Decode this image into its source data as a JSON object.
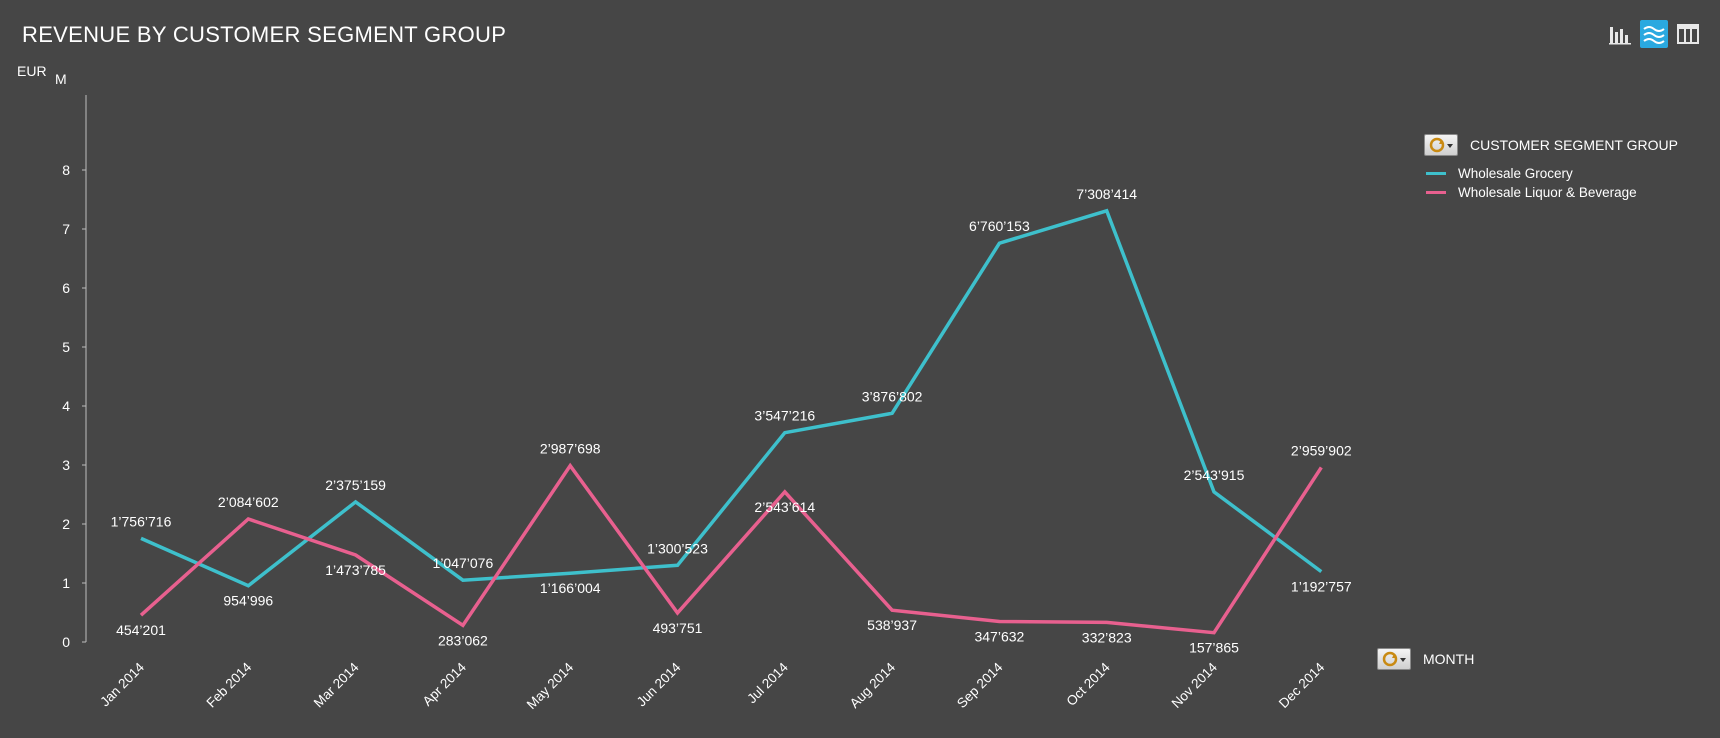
{
  "title": "REVENUE BY CUSTOMER SEGMENT GROUP",
  "colors": {
    "background": "#464646",
    "axis": "#bdbdbd",
    "text": "#ffffff",
    "grocery": "#3ec0cc",
    "liquor": "#e8608f"
  },
  "toolbar": {
    "icons": [
      "bar-chart-icon",
      "area-chart-icon",
      "table-icon"
    ],
    "active": "area-chart-icon"
  },
  "legend": {
    "title": "CUSTOMER SEGMENT GROUP",
    "items": [
      {
        "label": "Wholesale Grocery"
      },
      {
        "label": "Wholesale Liquor & Beverage"
      }
    ]
  },
  "month_field": {
    "label": "MONTH"
  },
  "chart_data": {
    "type": "line",
    "title": "REVENUE BY CUSTOMER SEGMENT GROUP",
    "ylabel": "EUR",
    "yunit": "M",
    "ylim": [
      0,
      8
    ],
    "yticks": [
      "0",
      "1",
      "2",
      "3",
      "4",
      "5",
      "6",
      "7",
      "8"
    ],
    "grid": false,
    "legend_placement": "right",
    "categories": [
      "Jan 2014",
      "Feb 2014",
      "Mar 2014",
      "Apr 2014",
      "May 2014",
      "Jun 2014",
      "Jul 2014",
      "Aug 2014",
      "Sep 2014",
      "Oct 2014",
      "Nov 2014",
      "Dec 2014"
    ],
    "series": [
      {
        "name": "Wholesale Grocery",
        "values": [
          1756716,
          954996,
          2375159,
          1047076,
          1166004,
          1300523,
          3547216,
          3876802,
          6760153,
          7308414,
          2543915,
          1192757
        ],
        "labels": [
          "1’756’716",
          "954’996",
          "2’375’159",
          "1’047’076",
          "1’166’004",
          "1’300’523",
          "3’547’216",
          "3’876’802",
          "6’760’153",
          "7’308’414",
          "2’543’915",
          "1’192’757"
        ]
      },
      {
        "name": "Wholesale Liquor & Beverage",
        "values": [
          454201,
          2084602,
          1473785,
          283062,
          2987698,
          493751,
          2543614,
          538937,
          347632,
          332823,
          157865,
          2959902
        ],
        "labels": [
          "454’201",
          "2’084’602",
          "1’473’785",
          "283’062",
          "2’987’698",
          "493’751",
          "2’543’614",
          "538’937",
          "347’632",
          "332’823",
          "157’865",
          "2’959’902"
        ]
      }
    ]
  }
}
